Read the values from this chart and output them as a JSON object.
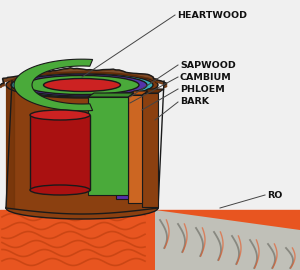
{
  "background_color": "#f0f0f0",
  "labels": {
    "heartwood": "HEARTWOOD",
    "sapwood": "SAPWOOD",
    "cambium": "CAMBIUM",
    "phloem": "PHLOEM",
    "bark": "BARK",
    "roots": "RO"
  },
  "colors": {
    "heartwood_top": "#cc2222",
    "heartwood_side": "#aa1111",
    "sapwood_top": "#4aaa3a",
    "sapwood_side": "#3a8a2a",
    "cambium": "#5533aa",
    "phloem": "#cc6622",
    "bark_top": "#7a3a10",
    "bark_body": "#8B4010",
    "bark_outer": "#6a3008",
    "ground_orange": "#e85520",
    "ground_gray": "#c0c0b8",
    "outline": "#1a1a1a",
    "white_bg": "#f8f8f5",
    "teal": "#3ab0b8",
    "purple": "#5533aa",
    "label_line": "#555555"
  },
  "figsize": [
    3.0,
    2.7
  ],
  "dpi": 100
}
